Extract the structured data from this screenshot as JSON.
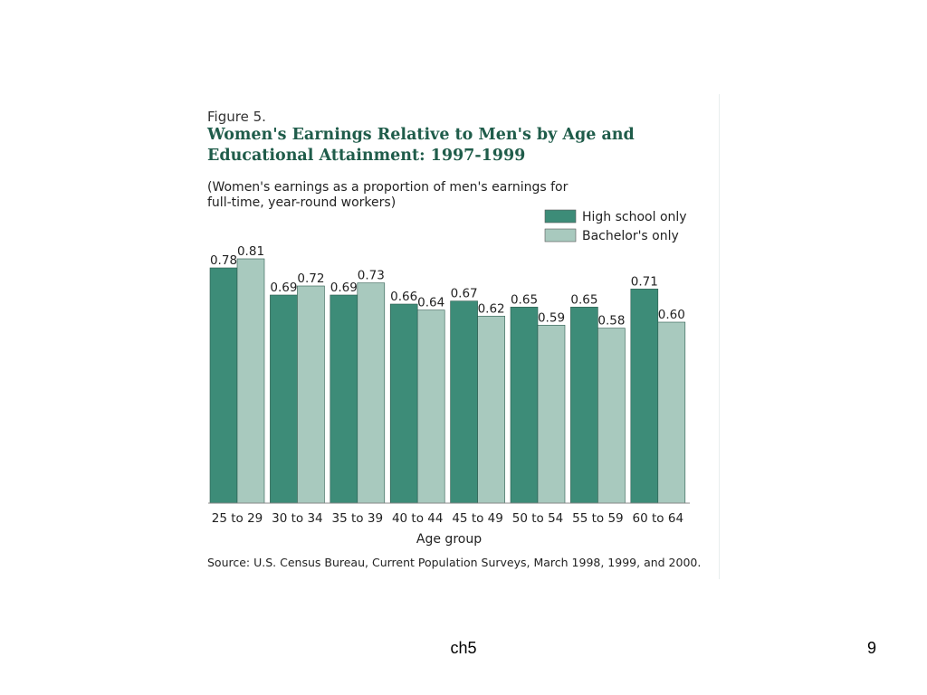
{
  "footer": {
    "center": "ch5",
    "page": "9"
  },
  "colors": {
    "series1": "#3d8c78",
    "series2": "#a8c9be",
    "title": "#1f5c4a",
    "axis": "#888888"
  },
  "chart_data": {
    "type": "bar",
    "figure_label": "Figure 5.",
    "title_lines": [
      "Women's Earnings Relative to Men's by Age and",
      "Educational Attainment: 1997-1999"
    ],
    "subtitle_lines": [
      "(Women's earnings as a proportion of men's earnings for",
      "full-time, year-round workers)"
    ],
    "categories": [
      "25 to 29",
      "30 to 34",
      "35 to 39",
      "40 to 44",
      "45 to 49",
      "50 to 54",
      "55 to 59",
      "60 to 64"
    ],
    "series": [
      {
        "name": "High school only",
        "values": [
          0.78,
          0.69,
          0.69,
          0.66,
          0.67,
          0.65,
          0.65,
          0.71
        ],
        "labels": [
          "0.78",
          "0.69",
          "0.69",
          "0.66",
          "0.67",
          "0.65",
          "0.65",
          "0.71"
        ]
      },
      {
        "name": "Bachelor's only",
        "values": [
          0.81,
          0.72,
          0.73,
          0.64,
          0.62,
          0.59,
          0.58,
          0.6
        ],
        "labels": [
          "0.81",
          "0.72",
          "0.73",
          "0.64",
          "0.62",
          "0.59",
          "0.58",
          "0.60"
        ]
      }
    ],
    "xlabel": "Age group",
    "ylabel": "",
    "ylim": [
      0,
      0.81
    ],
    "grid": false,
    "legend": "top-right",
    "source": "Source: U.S. Census Bureau, Current Population Surveys, March 1998, 1999, and 2000."
  }
}
